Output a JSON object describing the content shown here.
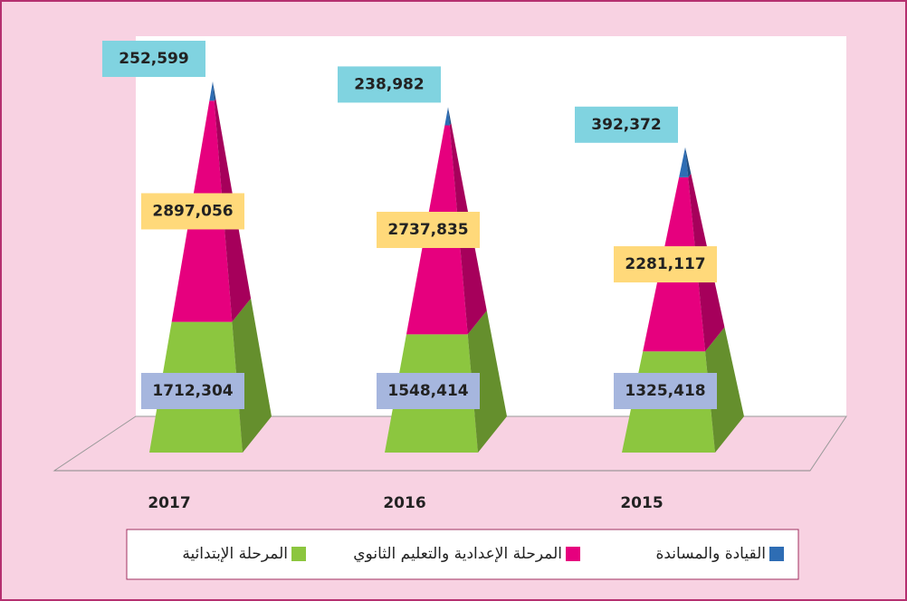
{
  "chart_data": {
    "type": "pyramid",
    "categories": [
      "2017",
      "2016",
      "2015"
    ],
    "series": [
      {
        "name": "المرحلة الإبتدائية",
        "color": "#8cc63f",
        "values": [
          1712304,
          1548414,
          1325418
        ],
        "value_labels": [
          "1712,304",
          "1548,414",
          "1325,418"
        ]
      },
      {
        "name": "المرحلة الإعدادية والتعليم الثانوي",
        "color": "#e6007e",
        "values": [
          2897056,
          2737835,
          2281117
        ],
        "value_labels": [
          "2897,056",
          "2737,835",
          "2281,117"
        ]
      },
      {
        "name": "القيادة والمساندة",
        "color": "#2e6db4",
        "values": [
          252599,
          238982,
          392372
        ],
        "value_labels": [
          "252,599",
          "238,982",
          "392,372"
        ]
      }
    ]
  }
}
